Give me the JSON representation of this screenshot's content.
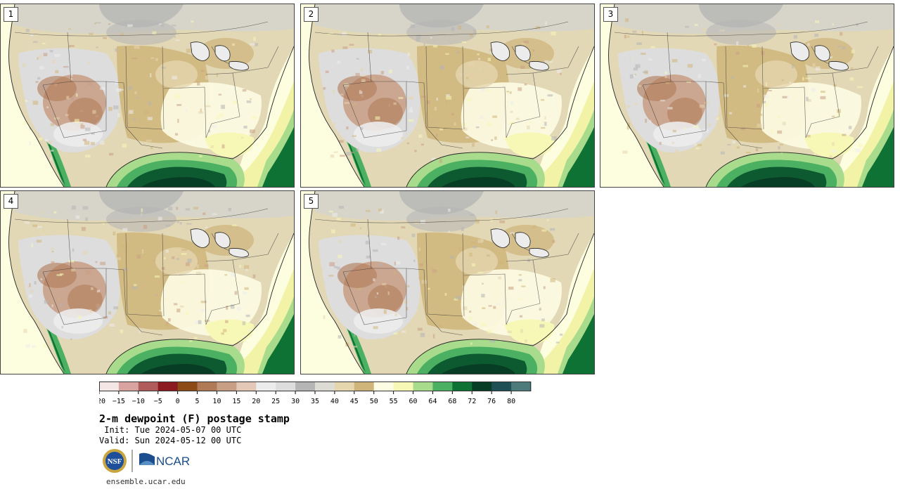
{
  "panels": [
    {
      "label": "1"
    },
    {
      "label": "2"
    },
    {
      "label": "3"
    },
    {
      "label": "4"
    },
    {
      "label": "5"
    }
  ],
  "colorbar": {
    "tick_labels": [
      "−20",
      "−15",
      "−10",
      "−5",
      "0",
      "5",
      "10",
      "15",
      "20",
      "25",
      "30",
      "35",
      "40",
      "45",
      "50",
      "55",
      "60",
      "64",
      "68",
      "72",
      "76",
      "80"
    ],
    "colors": [
      "#f3e6e4",
      "#d8a3a1",
      "#b05c5c",
      "#8c1a21",
      "#8b4a16",
      "#b07a56",
      "#c89e84",
      "#e3c8b8",
      "#ececec",
      "#dddddd",
      "#b5b5b5",
      "#dcdcd4",
      "#e5d6ae",
      "#cfb57a",
      "#fdfde4",
      "#f8f8b6",
      "#a8dc8c",
      "#4bb062",
      "#0e7234",
      "#073d24",
      "#1f5055",
      "#4d7a7a"
    ]
  },
  "title": "2-m dewpoint (F) postage stamp",
  "init": " Init: Tue 2024-05-07 00 UTC",
  "valid": "Valid: Sun 2024-05-12 00 UTC",
  "logos": {
    "nsf": "NSF",
    "ncar": "NCAR"
  },
  "url": "ensemble.ucar.edu",
  "colors": {
    "ocean_pacific": "#fdfde0",
    "gulf_deep": "#0e5a30",
    "desert": "#b07a56",
    "plains": "#cfb57a"
  }
}
